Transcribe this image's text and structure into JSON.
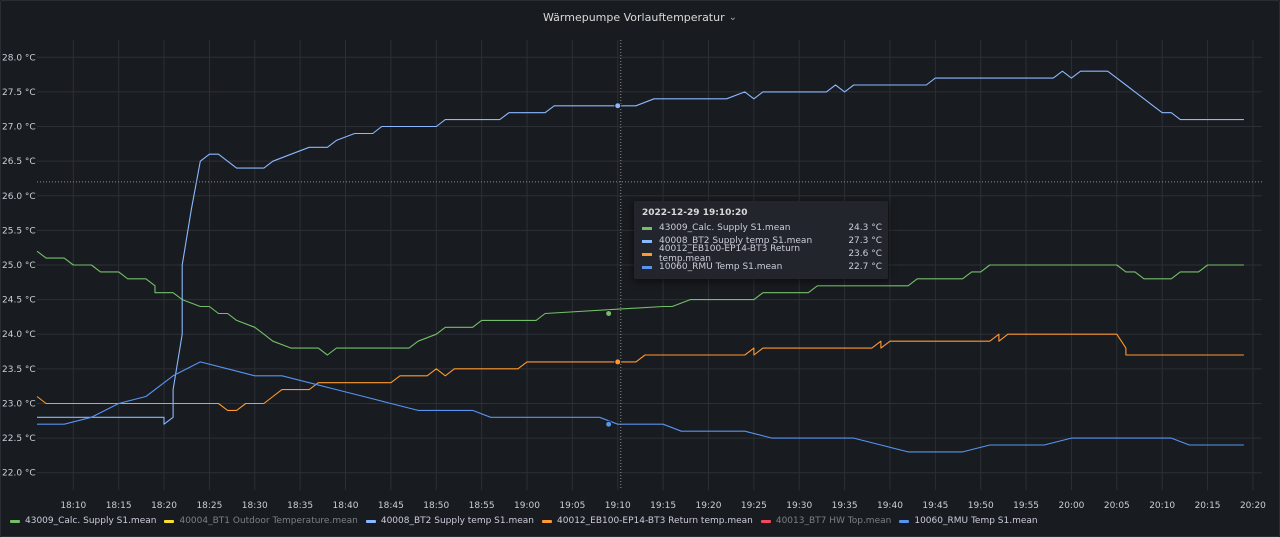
{
  "panel": {
    "title": "Wärmepumpe Vorlauftemperatur",
    "menu_icon": "chevron-down-icon"
  },
  "colors": {
    "background": "#181b1f",
    "grid": "#2c3036",
    "tick": "#c7d0d9"
  },
  "chart_data": {
    "type": "line",
    "title": "Wärmepumpe Vorlauftemperatur",
    "xlabel": "",
    "ylabel": "",
    "ylim": [
      21.75,
      28.25
    ],
    "y_ticks": [
      "22.0 °C",
      "22.5 °C",
      "23.0 °C",
      "23.5 °C",
      "24.0 °C",
      "24.5 °C",
      "25.0 °C",
      "25.5 °C",
      "26.0 °C",
      "26.5 °C",
      "27.0 °C",
      "27.5 °C",
      "28.0 °C"
    ],
    "x_ticks": [
      "18:10",
      "18:15",
      "18:20",
      "18:25",
      "18:30",
      "18:35",
      "18:40",
      "18:45",
      "18:50",
      "18:55",
      "19:00",
      "19:05",
      "19:10",
      "19:15",
      "19:20",
      "19:25",
      "19:30",
      "19:35",
      "19:40",
      "19:45",
      "19:50",
      "19:55",
      "20:00",
      "20:05",
      "20:10",
      "20:15",
      "20:20"
    ],
    "xlim": [
      "18:06",
      "20:21"
    ],
    "grid": true,
    "legend_position": "bottom",
    "crosshair_time": "19:10:20",
    "crosshair_value": 26.2,
    "series": [
      {
        "name": "43009_Calc. Supply S1.mean",
        "color": "#73bf69",
        "visible": true,
        "points": [
          [
            "18:06",
            25.2
          ],
          [
            "18:07",
            25.1
          ],
          [
            "18:09",
            25.1
          ],
          [
            "18:10",
            25.0
          ],
          [
            "18:12",
            25.0
          ],
          [
            "18:13",
            24.9
          ],
          [
            "18:15",
            24.9
          ],
          [
            "18:16",
            24.8
          ],
          [
            "18:18",
            24.8
          ],
          [
            "18:19",
            24.7
          ],
          [
            "18:19",
            24.6
          ],
          [
            "18:21",
            24.6
          ],
          [
            "18:22",
            24.5
          ],
          [
            "18:24",
            24.4
          ],
          [
            "18:25",
            24.4
          ],
          [
            "18:26",
            24.3
          ],
          [
            "18:27",
            24.3
          ],
          [
            "18:28",
            24.2
          ],
          [
            "18:30",
            24.1
          ],
          [
            "18:31",
            24.0
          ],
          [
            "18:32",
            23.9
          ],
          [
            "18:34",
            23.8
          ],
          [
            "18:37",
            23.8
          ],
          [
            "18:38",
            23.7
          ],
          [
            "18:39",
            23.8
          ],
          [
            "18:47",
            23.8
          ],
          [
            "18:48",
            23.9
          ],
          [
            "18:50",
            24.0
          ],
          [
            "18:51",
            24.1
          ],
          [
            "18:54",
            24.1
          ],
          [
            "18:55",
            24.2
          ],
          [
            "19:01",
            24.2
          ],
          [
            "19:02",
            24.3
          ],
          [
            "19:15",
            24.4
          ],
          [
            "19:16",
            24.4
          ],
          [
            "19:18",
            24.5
          ],
          [
            "19:25",
            24.5
          ],
          [
            "19:26",
            24.6
          ],
          [
            "19:31",
            24.6
          ],
          [
            "19:32",
            24.7
          ],
          [
            "19:42",
            24.7
          ],
          [
            "19:43",
            24.8
          ],
          [
            "19:48",
            24.8
          ],
          [
            "19:49",
            24.9
          ],
          [
            "19:50",
            24.9
          ],
          [
            "19:51",
            25.0
          ],
          [
            "20:05",
            25.0
          ],
          [
            "20:06",
            24.9
          ],
          [
            "20:07",
            24.9
          ],
          [
            "20:08",
            24.8
          ],
          [
            "20:11",
            24.8
          ],
          [
            "20:12",
            24.9
          ],
          [
            "20:14",
            24.9
          ],
          [
            "20:15",
            25.0
          ],
          [
            "20:19",
            25.0
          ]
        ]
      },
      {
        "name": "40004_BT1 Outdoor Temperature.mean",
        "color": "#fade2a",
        "visible": false,
        "points": []
      },
      {
        "name": "40008_BT2 Supply temp S1.mean",
        "color": "#8ab8ff",
        "visible": true,
        "points": [
          [
            "18:06",
            22.8
          ],
          [
            "18:20",
            22.8
          ],
          [
            "18:20",
            22.7
          ],
          [
            "18:21",
            22.8
          ],
          [
            "18:21",
            23.2
          ],
          [
            "18:22",
            24.0
          ],
          [
            "18:22",
            25.0
          ],
          [
            "18:23",
            25.8
          ],
          [
            "18:24",
            26.5
          ],
          [
            "18:25",
            26.6
          ],
          [
            "18:26",
            26.6
          ],
          [
            "18:27",
            26.5
          ],
          [
            "18:28",
            26.4
          ],
          [
            "18:31",
            26.4
          ],
          [
            "18:32",
            26.5
          ],
          [
            "18:34",
            26.6
          ],
          [
            "18:36",
            26.7
          ],
          [
            "18:38",
            26.7
          ],
          [
            "18:39",
            26.8
          ],
          [
            "18:41",
            26.9
          ],
          [
            "18:43",
            26.9
          ],
          [
            "18:44",
            27.0
          ],
          [
            "18:50",
            27.0
          ],
          [
            "18:51",
            27.1
          ],
          [
            "18:57",
            27.1
          ],
          [
            "18:58",
            27.2
          ],
          [
            "19:02",
            27.2
          ],
          [
            "19:03",
            27.3
          ],
          [
            "19:12",
            27.3
          ],
          [
            "19:14",
            27.4
          ],
          [
            "19:22",
            27.4
          ],
          [
            "19:24",
            27.5
          ],
          [
            "19:25",
            27.4
          ],
          [
            "19:26",
            27.5
          ],
          [
            "19:33",
            27.5
          ],
          [
            "19:34",
            27.6
          ],
          [
            "19:35",
            27.5
          ],
          [
            "19:36",
            27.6
          ],
          [
            "19:44",
            27.6
          ],
          [
            "19:45",
            27.7
          ],
          [
            "19:58",
            27.7
          ],
          [
            "19:59",
            27.8
          ],
          [
            "20:00",
            27.7
          ],
          [
            "20:01",
            27.8
          ],
          [
            "20:04",
            27.8
          ],
          [
            "20:05",
            27.7
          ],
          [
            "20:06",
            27.6
          ],
          [
            "20:07",
            27.5
          ],
          [
            "20:08",
            27.4
          ],
          [
            "20:09",
            27.3
          ],
          [
            "20:10",
            27.2
          ],
          [
            "20:11",
            27.2
          ],
          [
            "20:12",
            27.1
          ],
          [
            "20:19",
            27.1
          ]
        ]
      },
      {
        "name": "40012_EB100-EP14-BT3 Return temp.mean",
        "color": "#ff9830",
        "visible": true,
        "points": [
          [
            "18:06",
            23.1
          ],
          [
            "18:07",
            23.0
          ],
          [
            "18:26",
            23.0
          ],
          [
            "18:27",
            22.9
          ],
          [
            "18:28",
            22.9
          ],
          [
            "18:29",
            23.0
          ],
          [
            "18:31",
            23.0
          ],
          [
            "18:32",
            23.1
          ],
          [
            "18:33",
            23.2
          ],
          [
            "18:36",
            23.2
          ],
          [
            "18:37",
            23.3
          ],
          [
            "18:45",
            23.3
          ],
          [
            "18:46",
            23.4
          ],
          [
            "18:49",
            23.4
          ],
          [
            "18:50",
            23.5
          ],
          [
            "18:51",
            23.4
          ],
          [
            "18:52",
            23.5
          ],
          [
            "18:59",
            23.5
          ],
          [
            "19:00",
            23.6
          ],
          [
            "19:12",
            23.6
          ],
          [
            "19:13",
            23.7
          ],
          [
            "19:24",
            23.7
          ],
          [
            "19:25",
            23.8
          ],
          [
            "19:25",
            23.7
          ],
          [
            "19:26",
            23.8
          ],
          [
            "19:38",
            23.8
          ],
          [
            "19:39",
            23.9
          ],
          [
            "19:39",
            23.8
          ],
          [
            "19:40",
            23.9
          ],
          [
            "19:51",
            23.9
          ],
          [
            "19:52",
            24.0
          ],
          [
            "19:52",
            23.9
          ],
          [
            "19:53",
            24.0
          ],
          [
            "20:05",
            24.0
          ],
          [
            "20:06",
            23.8
          ],
          [
            "20:06",
            23.7
          ],
          [
            "20:19",
            23.7
          ]
        ]
      },
      {
        "name": "40013_BT7 HW Top.mean",
        "color": "#f2495c",
        "visible": false,
        "points": []
      },
      {
        "name": "10060_RMU Temp S1.mean",
        "color": "#5794f2",
        "visible": true,
        "points": [
          [
            "18:06",
            22.7
          ],
          [
            "18:09",
            22.7
          ],
          [
            "18:12",
            22.8
          ],
          [
            "18:15",
            23.0
          ],
          [
            "18:18",
            23.1
          ],
          [
            "18:21",
            23.4
          ],
          [
            "18:24",
            23.6
          ],
          [
            "18:27",
            23.5
          ],
          [
            "18:30",
            23.4
          ],
          [
            "18:33",
            23.4
          ],
          [
            "18:36",
            23.3
          ],
          [
            "18:39",
            23.2
          ],
          [
            "18:42",
            23.1
          ],
          [
            "18:45",
            23.0
          ],
          [
            "18:48",
            22.9
          ],
          [
            "18:54",
            22.9
          ],
          [
            "18:56",
            22.8
          ],
          [
            "19:08",
            22.8
          ],
          [
            "19:10",
            22.7
          ],
          [
            "19:15",
            22.7
          ],
          [
            "19:17",
            22.6
          ],
          [
            "19:24",
            22.6
          ],
          [
            "19:27",
            22.5
          ],
          [
            "19:36",
            22.5
          ],
          [
            "19:39",
            22.4
          ],
          [
            "19:42",
            22.3
          ],
          [
            "19:48",
            22.3
          ],
          [
            "19:51",
            22.4
          ],
          [
            "19:57",
            22.4
          ],
          [
            "20:00",
            22.5
          ],
          [
            "20:11",
            22.5
          ],
          [
            "20:13",
            22.4
          ],
          [
            "20:19",
            22.4
          ]
        ]
      }
    ],
    "markers": [
      {
        "series": "40008_BT2 Supply temp S1.mean",
        "time": "19:10",
        "value": 27.3
      },
      {
        "series": "43009_Calc. Supply S1.mean",
        "time": "19:09",
        "value": 24.3
      },
      {
        "series": "40012_EB100-EP14-BT3 Return temp.mean",
        "time": "19:10",
        "value": 23.6
      },
      {
        "series": "10060_RMU Temp S1.mean",
        "time": "19:09",
        "value": 22.7
      }
    ]
  },
  "tooltip": {
    "time": "2022-12-29 19:10:20",
    "rows": [
      {
        "name": "43009_Calc. Supply S1.mean",
        "value": "24.3 °C",
        "color": "#73bf69"
      },
      {
        "name": "40008_BT2 Supply temp S1.mean",
        "value": "27.3 °C",
        "color": "#8ab8ff"
      },
      {
        "name": "40012_EB100-EP14-BT3 Return temp.mean",
        "value": "23.6 °C",
        "color": "#ff9830"
      },
      {
        "name": "10060_RMU Temp S1.mean",
        "value": "22.7 °C",
        "color": "#5794f2"
      }
    ]
  },
  "legend": {
    "items": [
      {
        "name": "43009_Calc. Supply S1.mean",
        "color": "#73bf69",
        "active": true
      },
      {
        "name": "40004_BT1 Outdoor Temperature.mean",
        "color": "#fade2a",
        "active": false
      },
      {
        "name": "40008_BT2 Supply temp S1.mean",
        "color": "#8ab8ff",
        "active": true
      },
      {
        "name": "40012_EB100-EP14-BT3 Return temp.mean",
        "color": "#ff9830",
        "active": true
      },
      {
        "name": "40013_BT7 HW Top.mean",
        "color": "#f2495c",
        "active": false
      },
      {
        "name": "10060_RMU Temp S1.mean",
        "color": "#5794f2",
        "active": true
      }
    ]
  }
}
